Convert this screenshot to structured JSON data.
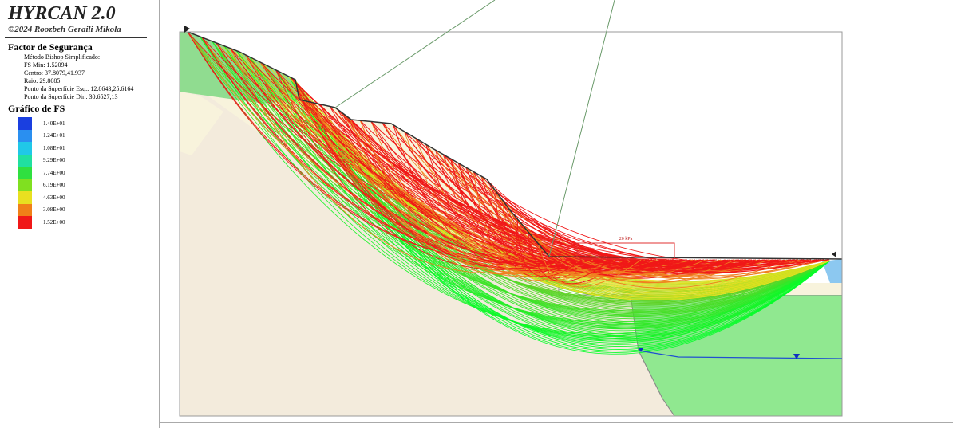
{
  "header": {
    "title": "HYRCAN 2.0",
    "copyright": "©2024 Roozbeh Geraili Mikola"
  },
  "results": {
    "heading": "Factor de Segurança",
    "lines": [
      "Método Bishop Simplificado:",
      "FS Min: 1.52094",
      "Centro: 37.8079,41.937",
      "Raio: 29.8085",
      "Ponto da Superfície Esq.: 12.8643,25.6164",
      "Ponto da Superfície Dir.: 30.6527,13"
    ]
  },
  "legend": {
    "heading": "Gráfico de FS",
    "items": [
      {
        "label": "1.40E+01",
        "color": "#1a3fe0"
      },
      {
        "label": "1.24E+01",
        "color": "#2a8ff0"
      },
      {
        "label": "1.08E+01",
        "color": "#20c8e8"
      },
      {
        "label": "9.29E+00",
        "color": "#20e0a0"
      },
      {
        "label": "7.74E+00",
        "color": "#30e040"
      },
      {
        "label": "6.19E+00",
        "color": "#80e020"
      },
      {
        "label": "4.63E+00",
        "color": "#e8e020"
      },
      {
        "label": "3.08E+00",
        "color": "#f08018"
      },
      {
        "label": "1.52E+00",
        "color": "#f01818"
      }
    ]
  },
  "load": {
    "label": "20 kPa"
  }
}
